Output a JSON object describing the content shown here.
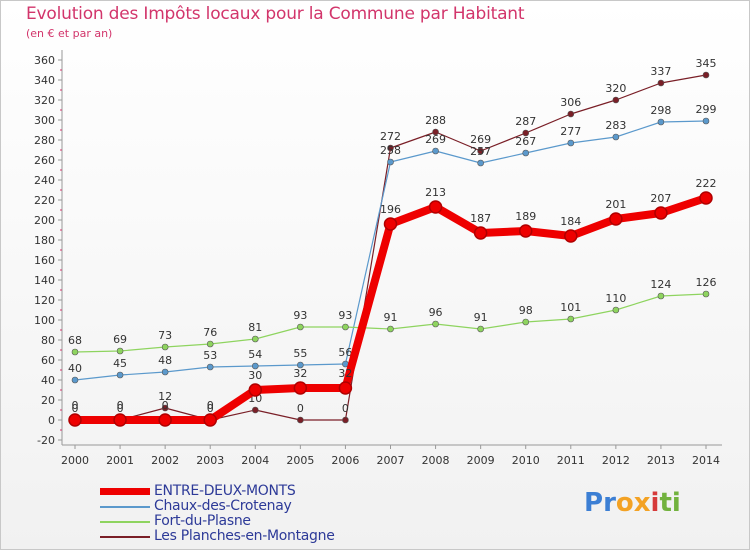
{
  "title": "Evolution des Impôts locaux pour la Commune par Habitant",
  "subtitle": "(en € et par an)",
  "brand": {
    "letters": [
      "P",
      "r",
      "o",
      "x",
      "i",
      "t",
      "i"
    ],
    "colors": [
      "#3c7fd4",
      "#3c7fd4",
      "#f3a224",
      "#f3a224",
      "#d63a3a",
      "#72b23e",
      "#72b23e"
    ]
  },
  "chart_data": {
    "type": "line",
    "x": [
      "2000",
      "2001",
      "2002",
      "2003",
      "2004",
      "2005",
      "2006",
      "2007",
      "2008",
      "2009",
      "2010",
      "2011",
      "2012",
      "2013",
      "2014"
    ],
    "ylim": [
      -20,
      360
    ],
    "yticks": [
      -20,
      0,
      20,
      40,
      60,
      80,
      100,
      120,
      140,
      160,
      180,
      200,
      220,
      240,
      260,
      280,
      300,
      320,
      340,
      360
    ],
    "grid": false,
    "legend_position": "bottom",
    "series": [
      {
        "name": "Les Planches-en-Montagne",
        "color": "#7a1f27",
        "width": 1.2,
        "values": [
          0,
          0,
          12,
          0,
          10,
          0,
          0,
          272,
          288,
          269,
          287,
          306,
          320,
          337,
          345
        ],
        "labels": [
          "0",
          "0",
          "12",
          "0",
          "10",
          "0",
          "0",
          "272",
          "288",
          "269",
          "287",
          "306",
          "320",
          "337",
          "345"
        ]
      },
      {
        "name": "Chaux-des-Crotenay",
        "color": "#5b99cc",
        "width": 1.2,
        "values": [
          40,
          45,
          48,
          53,
          54,
          55,
          56,
          258,
          269,
          257,
          267,
          277,
          283,
          298,
          299
        ],
        "labels": [
          "40",
          "45",
          "48",
          "53",
          "54",
          "55",
          "56",
          "258",
          "269",
          "257",
          "267",
          "277",
          "283",
          "298",
          "299"
        ]
      },
      {
        "name": "Fort-du-Plasne",
        "color": "#8ed45f",
        "width": 1.2,
        "values": [
          68,
          69,
          73,
          76,
          81,
          93,
          93,
          91,
          96,
          91,
          98,
          101,
          110,
          124,
          126
        ],
        "labels": [
          "68",
          "69",
          "73",
          "76",
          "81",
          "93",
          "93",
          "91",
          "96",
          "91",
          "98",
          "101",
          "110",
          "124",
          "126"
        ]
      },
      {
        "name": "ENTRE-DEUX-MONTS",
        "color": "#ee0000",
        "width": 8,
        "values": [
          0,
          0,
          0,
          0,
          30,
          32,
          32,
          196,
          213,
          187,
          189,
          184,
          201,
          207,
          222
        ],
        "labels": [
          "0",
          "0",
          "0",
          "0",
          "30",
          "32",
          "32",
          "196",
          "213",
          "187",
          "189",
          "184",
          "201",
          "207",
          "222"
        ]
      }
    ],
    "legend": [
      "ENTRE-DEUX-MONTS",
      "Chaux-des-Crotenay",
      "Fort-du-Plasne",
      "Les Planches-en-Montagne"
    ]
  }
}
